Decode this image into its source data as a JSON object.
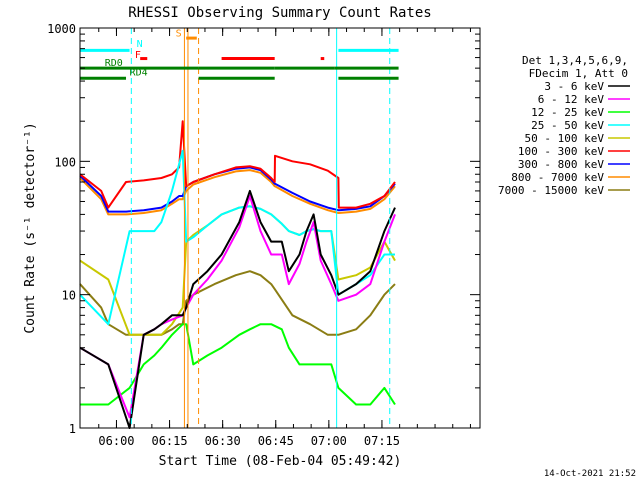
{
  "chart_data": {
    "type": "line",
    "title": "RHESSI Observing Summary Count Rates",
    "xlabel": "Start Time (08-Feb-04 05:49:42)",
    "ylabel": "Count Rate (s⁻¹ detector⁻¹)",
    "yscale": "log",
    "xlim": [
      0,
      113
    ],
    "ylim": [
      1,
      1000
    ],
    "x_units": "minutes after 05:49:42",
    "x_ticks": [
      {
        "at": 10.3,
        "label": "06:00"
      },
      {
        "at": 25.3,
        "label": "06:15"
      },
      {
        "at": 40.3,
        "label": "06:30"
      },
      {
        "at": 55.3,
        "label": "06:45"
      },
      {
        "at": 70.3,
        "label": "07:00"
      },
      {
        "at": 85.3,
        "label": "07:15"
      }
    ],
    "y_ticks": [
      {
        "at": 1,
        "label": "1"
      },
      {
        "at": 10,
        "label": "10"
      },
      {
        "at": 100,
        "label": "100"
      },
      {
        "at": 1000,
        "label": "1000"
      }
    ],
    "legend_title": [
      "Det 1,3,4,5,6,9,",
      "FDecim 1, Att 0"
    ],
    "legend_position": "right",
    "series": [
      {
        "name": "3 - 6 keV",
        "color": "#000000",
        "x": [
          0,
          8,
          14,
          18,
          21,
          23,
          26,
          29,
          30,
          32,
          36,
          40,
          45,
          48,
          51,
          54,
          57,
          59,
          62,
          64,
          66,
          68,
          71,
          73,
          78,
          82,
          86,
          89
        ],
        "y": [
          4,
          3,
          1,
          5,
          5.5,
          6,
          7,
          7,
          8,
          12,
          15,
          20,
          35,
          60,
          35,
          25,
          25,
          15,
          20,
          30,
          40,
          20,
          14,
          10,
          12,
          15,
          30,
          45
        ]
      },
      {
        "name": "6 - 12 keV",
        "color": "#ff00ff",
        "x": [
          0,
          8,
          14,
          18,
          21,
          23,
          26,
          29,
          30,
          32,
          36,
          40,
          45,
          48,
          51,
          54,
          57,
          59,
          62,
          64,
          66,
          68,
          71,
          73,
          78,
          82,
          86,
          89
        ],
        "y": [
          4,
          3,
          1.2,
          5,
          5.5,
          6,
          6.5,
          7,
          8,
          10,
          13,
          18,
          32,
          55,
          30,
          20,
          20,
          12,
          17,
          25,
          35,
          18,
          12,
          9,
          10,
          12,
          25,
          40
        ]
      },
      {
        "name": "12 - 25 keV",
        "color": "#00ff00",
        "x": [
          0,
          8,
          14,
          18,
          21,
          23,
          26,
          29,
          30,
          32,
          36,
          40,
          45,
          48,
          51,
          54,
          57,
          59,
          62,
          64,
          66,
          68,
          71,
          73,
          78,
          82,
          86,
          89
        ],
        "y": [
          1.5,
          1.5,
          2,
          3,
          3.5,
          4,
          5,
          6,
          6,
          3,
          3.5,
          4,
          5,
          5.5,
          6,
          6,
          5.5,
          4,
          3,
          3,
          3,
          3,
          3,
          2,
          1.5,
          1.5,
          2,
          1.5
        ]
      },
      {
        "name": "25 - 50 keV",
        "color": "#00ffff",
        "x": [
          0,
          8,
          14,
          18,
          21,
          23,
          26,
          29,
          30,
          32,
          36,
          40,
          45,
          48,
          51,
          54,
          57,
          59,
          62,
          64,
          66,
          68,
          71,
          73,
          78,
          82,
          86,
          89
        ],
        "y": [
          10,
          6,
          30,
          30,
          30,
          35,
          60,
          120,
          25,
          27,
          33,
          40,
          45,
          46,
          44,
          40,
          34,
          30,
          28,
          30,
          31,
          30,
          30,
          10,
          12,
          14,
          20,
          20
        ]
      },
      {
        "name": "50 - 100 keV",
        "color": "#c8c800",
        "x": [
          0,
          8,
          14,
          18,
          21,
          23,
          26,
          29,
          30,
          32,
          36,
          40,
          45,
          48,
          51,
          54,
          57,
          59,
          62,
          64,
          66,
          68,
          71,
          73,
          78,
          82,
          86,
          89
        ],
        "y": [
          18,
          13,
          5,
          5,
          5,
          5,
          6,
          8,
          25,
          28,
          33,
          40,
          45,
          46,
          44,
          40,
          34,
          30,
          28,
          30,
          31,
          30,
          30,
          13,
          14,
          16,
          25,
          18
        ]
      },
      {
        "name": "100 - 300 keV",
        "color": "#ff0000",
        "x": [
          0,
          6,
          8,
          13,
          18,
          23,
          26,
          28,
          29,
          30,
          32,
          38,
          44,
          48,
          51,
          54,
          55,
          55.1,
          60,
          65,
          70,
          73,
          73.1,
          78,
          82,
          86,
          89
        ],
        "y": [
          80,
          60,
          45,
          70,
          72,
          75,
          80,
          90,
          200,
          65,
          70,
          80,
          90,
          92,
          88,
          75,
          70,
          110,
          100,
          95,
          85,
          75,
          45,
          45,
          48,
          55,
          70
        ]
      },
      {
        "name": "300 - 800 keV",
        "color": "#0000ff",
        "x": [
          0,
          6,
          8,
          13,
          18,
          23,
          26,
          28,
          29,
          30,
          32,
          38,
          44,
          48,
          51,
          54,
          55,
          55.1,
          60,
          65,
          70,
          73,
          73.1,
          78,
          82,
          86,
          89
        ],
        "y": [
          78,
          55,
          42,
          42,
          43,
          45,
          50,
          55,
          55,
          65,
          70,
          80,
          88,
          90,
          86,
          73,
          68,
          68,
          58,
          50,
          45,
          43,
          43,
          44,
          46,
          55,
          68
        ]
      },
      {
        "name": "800 - 7000 keV",
        "color": "#ff8c00",
        "x": [
          0,
          6,
          8,
          13,
          18,
          23,
          26,
          28,
          29,
          30,
          32,
          38,
          44,
          48,
          51,
          54,
          55,
          55.1,
          60,
          65,
          70,
          73,
          73.1,
          78,
          82,
          86,
          89
        ],
        "y": [
          75,
          52,
          40,
          40,
          41,
          43,
          48,
          52,
          52,
          60,
          67,
          76,
          84,
          86,
          82,
          70,
          65,
          65,
          55,
          48,
          43,
          41,
          41,
          42,
          44,
          52,
          65
        ]
      },
      {
        "name": "7000 - 15000 keV",
        "color": "#8b7d14",
        "x": [
          0,
          6,
          8,
          13,
          18,
          23,
          26,
          28,
          29,
          30,
          32,
          38,
          44,
          48,
          51,
          54,
          55,
          60,
          65,
          70,
          73,
          78,
          82,
          86,
          89
        ],
        "y": [
          12,
          8,
          6,
          5,
          5,
          5,
          5.5,
          6,
          6,
          9,
          10,
          12,
          14,
          15,
          14,
          12,
          11,
          7,
          6,
          5,
          5,
          5.5,
          7,
          10,
          12
        ]
      }
    ],
    "vertical_markers": [
      {
        "x": 29.5,
        "color": "#ff8c00",
        "style": "solid"
      },
      {
        "x": 30.5,
        "color": "#ff8c00",
        "style": "solid"
      },
      {
        "x": 33.5,
        "color": "#ff8c00",
        "style": "dashed"
      },
      {
        "x": 14.5,
        "color": "#00ffff",
        "style": "dashed"
      },
      {
        "x": 72.5,
        "color": "#00ffff",
        "style": "solid"
      },
      {
        "x": 87.5,
        "color": "#00ffff",
        "style": "dashed"
      }
    ],
    "annotations": [
      {
        "label": "N",
        "color": "#00ffff",
        "x": 16,
        "y": 720
      },
      {
        "label": "F",
        "color": "#ff0000",
        "x": 15.5,
        "y": 595
      },
      {
        "label": "S",
        "color": "#ff8c00",
        "x": 27,
        "y": 860
      },
      {
        "label": "RD0",
        "color": "#008000",
        "x": 7,
        "y": 520
      },
      {
        "label": "RD4",
        "color": "#008000",
        "x": 14,
        "y": 440
      }
    ],
    "bars": [
      {
        "color": "#00ffff",
        "y": 680,
        "spans": [
          [
            0,
            14
          ],
          [
            73,
            90
          ]
        ]
      },
      {
        "color": "#008000",
        "y": 500,
        "spans": [
          [
            0,
            33.5
          ],
          [
            33.5,
            55
          ],
          [
            55,
            72
          ],
          [
            72,
            90
          ]
        ]
      },
      {
        "color": "#008000",
        "y": 420,
        "spans": [
          [
            0,
            13
          ],
          [
            33.5,
            55
          ],
          [
            73,
            90
          ]
        ]
      },
      {
        "color": "#ff0000",
        "y": 590,
        "spans": [
          [
            17,
            19
          ],
          [
            40,
            55
          ],
          [
            68,
            69
          ]
        ]
      },
      {
        "color": "#ff8c00",
        "y": 840,
        "spans": [
          [
            30,
            33
          ]
        ]
      }
    ],
    "footer": "14-Oct-2021 21:52"
  }
}
